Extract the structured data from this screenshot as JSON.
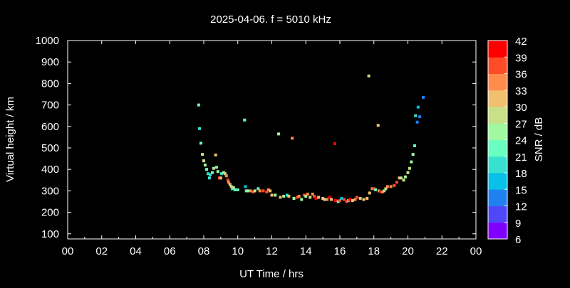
{
  "chart_data": {
    "type": "scatter",
    "title": "2025-04-06. f = 5010 kHz",
    "xlabel": "UT Time / hrs",
    "ylabel": "Virtual height / km",
    "xlim": [
      0,
      24
    ],
    "ylim": [
      80,
      1000
    ],
    "xticks": [
      "00",
      "02",
      "04",
      "06",
      "08",
      "10",
      "12",
      "14",
      "16",
      "18",
      "20",
      "22",
      "00"
    ],
    "yticks": [
      100,
      200,
      300,
      400,
      500,
      600,
      700,
      800,
      900,
      1000
    ],
    "grid": false,
    "colorbar": {
      "label": "SNR / dB",
      "range": [
        6,
        42
      ],
      "ticks": [
        6,
        9,
        12,
        15,
        18,
        21,
        24,
        27,
        30,
        33,
        36,
        39,
        42
      ],
      "colors": [
        "#8000ff",
        "#5048f8",
        "#2080f0",
        "#08c0e8",
        "#38e0d0",
        "#68ffc0",
        "#a0f8a0",
        "#c8e088",
        "#f0c070",
        "#ff8c4c",
        "#ff4c28",
        "#ff0000"
      ]
    },
    "points": [
      [
        7.7,
        700,
        21
      ],
      [
        7.75,
        590,
        18
      ],
      [
        7.83,
        522,
        21
      ],
      [
        7.92,
        470,
        27
      ],
      [
        8.0,
        440,
        27
      ],
      [
        8.08,
        420,
        24
      ],
      [
        8.17,
        400,
        21
      ],
      [
        8.25,
        380,
        18
      ],
      [
        8.33,
        360,
        18
      ],
      [
        8.38,
        375,
        18
      ],
      [
        8.5,
        385,
        21
      ],
      [
        8.58,
        405,
        27
      ],
      [
        8.7,
        467,
        30
      ],
      [
        8.75,
        410,
        21
      ],
      [
        8.83,
        390,
        24
      ],
      [
        8.92,
        360,
        36
      ],
      [
        9.0,
        360,
        30
      ],
      [
        9.04,
        380,
        18
      ],
      [
        9.17,
        385,
        24
      ],
      [
        9.25,
        380,
        27
      ],
      [
        9.33,
        370,
        33
      ],
      [
        9.42,
        350,
        36
      ],
      [
        9.46,
        340,
        33
      ],
      [
        9.54,
        330,
        30
      ],
      [
        9.62,
        320,
        27
      ],
      [
        9.67,
        310,
        18
      ],
      [
        9.75,
        315,
        27
      ],
      [
        9.83,
        305,
        21
      ],
      [
        10.0,
        305,
        21
      ],
      [
        10.4,
        630,
        21
      ],
      [
        10.45,
        320,
        15
      ],
      [
        10.5,
        300,
        21
      ],
      [
        10.6,
        300,
        24
      ],
      [
        10.75,
        300,
        33
      ],
      [
        10.9,
        295,
        36
      ],
      [
        11.0,
        300,
        27
      ],
      [
        11.2,
        310,
        21
      ],
      [
        11.3,
        300,
        33
      ],
      [
        11.5,
        300,
        36
      ],
      [
        11.7,
        295,
        36
      ],
      [
        11.8,
        305,
        33
      ],
      [
        11.9,
        300,
        30
      ],
      [
        12.0,
        280,
        30
      ],
      [
        12.2,
        280,
        24
      ],
      [
        12.4,
        565,
        24
      ],
      [
        12.5,
        270,
        30
      ],
      [
        12.7,
        275,
        24
      ],
      [
        12.9,
        280,
        18
      ],
      [
        13.0,
        275,
        30
      ],
      [
        13.2,
        545,
        33
      ],
      [
        13.3,
        265,
        24
      ],
      [
        13.5,
        270,
        36
      ],
      [
        13.6,
        275,
        33
      ],
      [
        13.75,
        260,
        24
      ],
      [
        13.9,
        280,
        36
      ],
      [
        14.0,
        275,
        24
      ],
      [
        14.1,
        285,
        33
      ],
      [
        14.25,
        270,
        27
      ],
      [
        14.4,
        285,
        33
      ],
      [
        14.5,
        275,
        36
      ],
      [
        14.6,
        265,
        39
      ],
      [
        14.75,
        270,
        30
      ],
      [
        15.0,
        265,
        30
      ],
      [
        15.1,
        260,
        27
      ],
      [
        15.25,
        260,
        33
      ],
      [
        15.4,
        270,
        39
      ],
      [
        15.5,
        260,
        30
      ],
      [
        15.7,
        520,
        42
      ],
      [
        15.75,
        255,
        42
      ],
      [
        15.9,
        250,
        21
      ],
      [
        16.0,
        255,
        36
      ],
      [
        16.1,
        265,
        15
      ],
      [
        16.25,
        260,
        36
      ],
      [
        16.4,
        250,
        36
      ],
      [
        16.5,
        255,
        33
      ],
      [
        16.6,
        260,
        42
      ],
      [
        16.75,
        255,
        30
      ],
      [
        16.9,
        260,
        33
      ],
      [
        17.0,
        270,
        36
      ],
      [
        17.2,
        265,
        30
      ],
      [
        17.4,
        260,
        30
      ],
      [
        17.6,
        265,
        30
      ],
      [
        17.7,
        835,
        27
      ],
      [
        17.75,
        290,
        30
      ],
      [
        17.9,
        310,
        33
      ],
      [
        18.0,
        310,
        36
      ],
      [
        18.1,
        305,
        21
      ],
      [
        18.25,
        605,
        30
      ],
      [
        18.3,
        300,
        33
      ],
      [
        18.4,
        295,
        39
      ],
      [
        18.5,
        295,
        33
      ],
      [
        18.6,
        300,
        27
      ],
      [
        18.7,
        310,
        27
      ],
      [
        18.8,
        320,
        33
      ],
      [
        19.0,
        320,
        33
      ],
      [
        19.2,
        325,
        36
      ],
      [
        19.35,
        340,
        36
      ],
      [
        19.5,
        360,
        30
      ],
      [
        19.6,
        360,
        27
      ],
      [
        19.75,
        350,
        27
      ],
      [
        19.85,
        365,
        24
      ],
      [
        20.0,
        385,
        27
      ],
      [
        20.1,
        405,
        27
      ],
      [
        20.2,
        435,
        24
      ],
      [
        20.3,
        470,
        24
      ],
      [
        20.4,
        510,
        21
      ],
      [
        20.45,
        650,
        18
      ],
      [
        20.55,
        620,
        12
      ],
      [
        20.6,
        690,
        15
      ],
      [
        20.7,
        645,
        12
      ],
      [
        20.9,
        735,
        12
      ]
    ]
  }
}
